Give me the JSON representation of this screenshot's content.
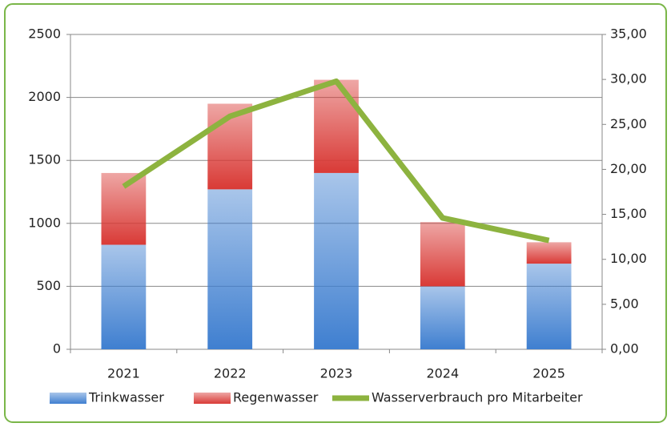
{
  "chart_data": {
    "type": "bar",
    "categories": [
      "2021",
      "2022",
      "2023",
      "2024",
      "2025"
    ],
    "series": [
      {
        "name": "Trinkwasser",
        "color": "#3f7fd0",
        "values": [
          830,
          1270,
          1400,
          500,
          680
        ]
      },
      {
        "name": "Regenwasser",
        "color": "#d93a36",
        "values": [
          570,
          680,
          740,
          510,
          170
        ]
      },
      {
        "name": "Wasserverbrauch pro Mitarbeiter",
        "color": "#8db33f",
        "type": "line",
        "axis": "y2",
        "values": [
          18.1,
          25.9,
          29.8,
          14.6,
          12.1
        ]
      }
    ],
    "ylim": [
      0,
      2500
    ],
    "yticks": [
      0,
      500,
      1000,
      1500,
      2000,
      2500
    ],
    "y2lim": [
      0,
      35
    ],
    "y2ticks": [
      {
        "value": 0,
        "label": "0,00"
      },
      {
        "value": 5,
        "label": "5,00"
      },
      {
        "value": 10,
        "label": "10,00"
      },
      {
        "value": 15,
        "label": "15,00"
      },
      {
        "value": 20,
        "label": "20,00"
      },
      {
        "value": 25,
        "label": "25,00"
      },
      {
        "value": 30,
        "label": "30,00"
      },
      {
        "value": 35,
        "label": "35,00"
      }
    ],
    "grid": true,
    "stacked": true,
    "legend": "bottom"
  }
}
